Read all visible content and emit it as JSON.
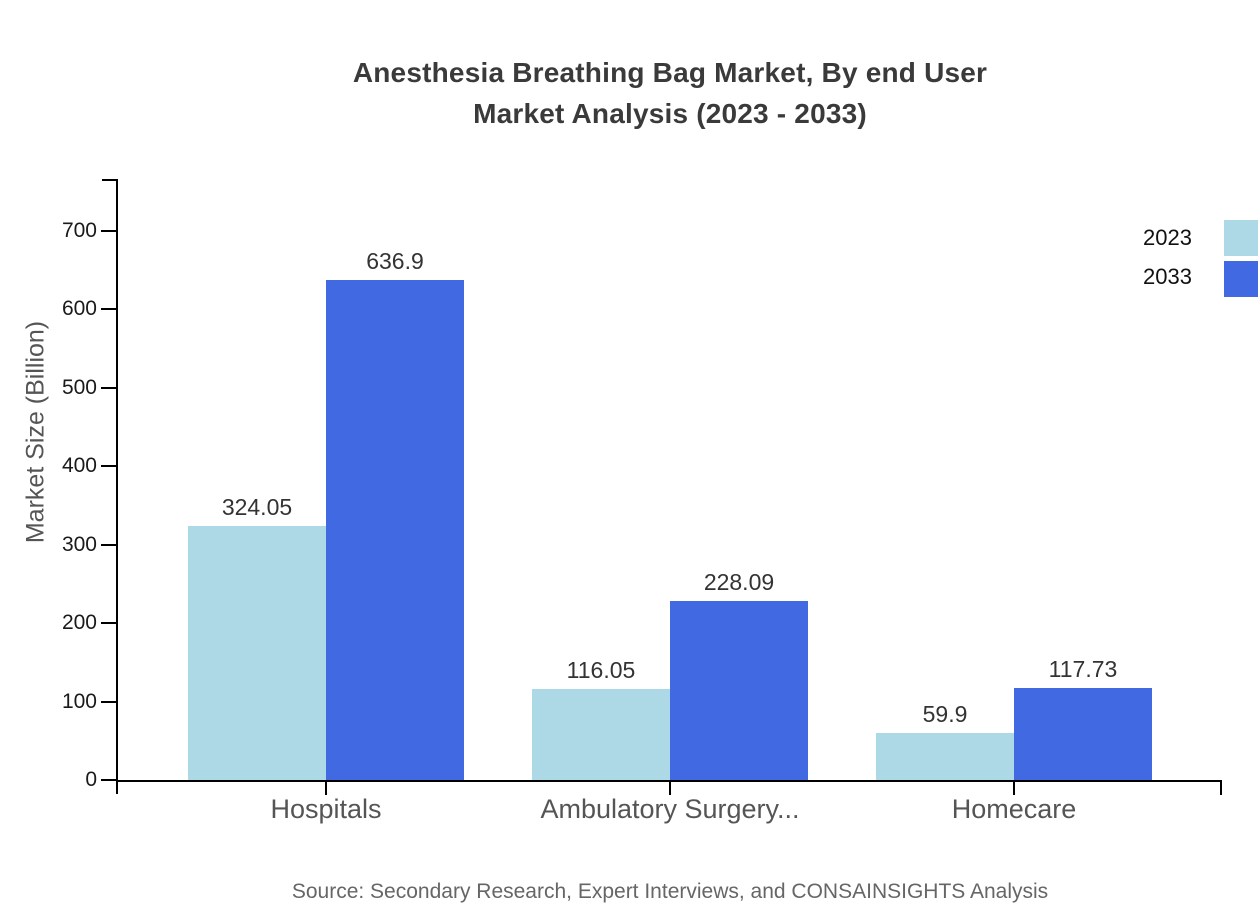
{
  "title": {
    "line1": "Anesthesia Breathing Bag Market, By end User",
    "line2": "Market Analysis (2023 - 2033)"
  },
  "source": "Source: Secondary Research, Expert Interviews, and CONSAINSIGHTS Analysis",
  "chart_data": {
    "type": "bar",
    "title": "Anesthesia Breathing Bag Market, By end User Market Analysis (2023 - 2033)",
    "categories": [
      "Hospitals",
      "Ambulatory Surgery...",
      "Homecare"
    ],
    "series": [
      {
        "name": "2023",
        "color": "#ADD8E6",
        "values": [
          324.05,
          116.05,
          59.9
        ]
      },
      {
        "name": "2033",
        "color": "#4169E1",
        "values": [
          636.9,
          228.09,
          117.73
        ]
      }
    ],
    "xlabel": "",
    "ylabel": "Market Size (Billion)",
    "y_ticks": [
      0,
      100,
      200,
      300,
      400,
      500,
      600,
      700
    ],
    "ylim": [
      0,
      766
    ],
    "grid": false,
    "legend_position": "top-right",
    "value_labels_shown": true
  }
}
